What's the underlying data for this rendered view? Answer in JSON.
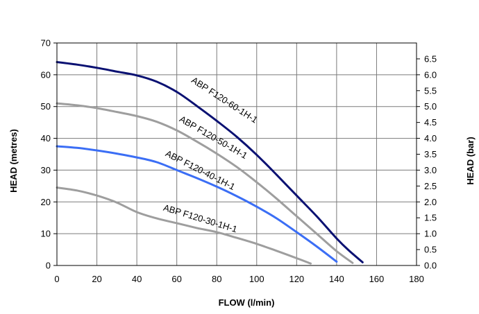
{
  "chart_data": {
    "type": "line",
    "xlabel": "FLOW (l/min)",
    "ylabel": "HEAD (metres)",
    "y2label": "HEAD (bar)",
    "xlim": [
      0,
      180
    ],
    "ylim": [
      0,
      70
    ],
    "y2lim": [
      0,
      7
    ],
    "grid": true,
    "x_ticks": [
      "0",
      "20",
      "40",
      "60",
      "80",
      "100",
      "120",
      "140",
      "160",
      "180"
    ],
    "y_ticks": [
      "0",
      "10",
      "20",
      "30",
      "40",
      "50",
      "60",
      "70"
    ],
    "y2_ticks": [
      "0.0",
      "0.5",
      "1.0",
      "1.5",
      "2.0",
      "2.5",
      "3.0",
      "3.5",
      "4.0",
      "4.5",
      "5.0",
      "5.5",
      "6.0",
      "6.5"
    ],
    "series": [
      {
        "name": "ABP F120-60-1H-1",
        "color": "#0a1172",
        "x": [
          0,
          10,
          20,
          30,
          40,
          50,
          60,
          70,
          80,
          90,
          100,
          110,
          120,
          130,
          140,
          146,
          153
        ],
        "y": [
          64,
          63.2,
          62.2,
          61,
          59.8,
          57.8,
          54.6,
          50.2,
          45.5,
          40.5,
          34.8,
          28.5,
          22,
          15.5,
          8.5,
          4.8,
          1
        ]
      },
      {
        "name": "ABP F120-50-1H-1",
        "color": "#9e9e9e",
        "x": [
          0,
          10,
          20,
          30,
          40,
          50,
          60,
          70,
          80,
          90,
          100,
          110,
          120,
          130,
          140,
          148
        ],
        "y": [
          51,
          50.4,
          49.5,
          48.3,
          47,
          45.2,
          42.5,
          39,
          35.2,
          31,
          26.2,
          21,
          15.5,
          10,
          4.5,
          0.8
        ]
      },
      {
        "name": "ABP F120-40-1H-1",
        "color": "#3b6ef5",
        "x": [
          0,
          10,
          20,
          30,
          40,
          50,
          60,
          70,
          80,
          90,
          100,
          110,
          120,
          130,
          140
        ],
        "y": [
          37.5,
          37,
          36.2,
          35.2,
          34,
          32.5,
          30,
          27.5,
          24.8,
          21.8,
          18.5,
          14.8,
          10.5,
          6,
          1.2
        ]
      },
      {
        "name": "ABP F120-30-1H-1",
        "color": "#9e9e9e",
        "x": [
          0,
          10,
          20,
          30,
          40,
          50,
          60,
          70,
          80,
          90,
          100,
          110,
          120,
          127
        ],
        "y": [
          24.5,
          23.6,
          22,
          19.8,
          16.8,
          14.8,
          13.3,
          11.8,
          10.5,
          8.7,
          6.8,
          4.6,
          2.3,
          0.6
        ]
      }
    ]
  }
}
